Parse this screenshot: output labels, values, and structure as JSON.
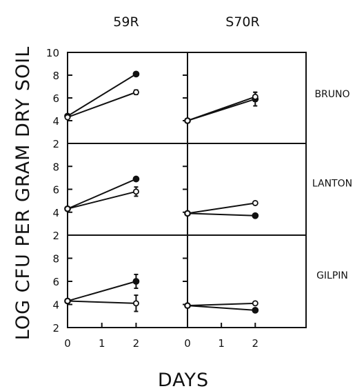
{
  "chart_data": {
    "type": "line",
    "ylabel": "LOG CFU PER GRAM DRY SOIL",
    "xlabel": "DAYS",
    "columns": [
      "59R",
      "S70R"
    ],
    "rows": [
      "BRUNO",
      "LANTON",
      "GILPIN"
    ],
    "ylim": [
      2,
      10
    ],
    "yticks": [
      2,
      4,
      6,
      8,
      10
    ],
    "xlim": [
      0,
      3.5
    ],
    "xticks": [
      0,
      1,
      2
    ],
    "x": [
      0,
      2
    ],
    "panels": [
      {
        "row": "BRUNO",
        "column": "59R",
        "series": [
          {
            "marker": "filled",
            "values": [
              4.4,
              8.1
            ]
          },
          {
            "marker": "open",
            "values": [
              4.3,
              6.5
            ],
            "error": [
              0,
              0.2
            ]
          }
        ]
      },
      {
        "row": "BRUNO",
        "column": "S70R",
        "series": [
          {
            "marker": "filled",
            "values": [
              4.0,
              5.9
            ],
            "error": [
              0,
              0.6
            ]
          },
          {
            "marker": "open",
            "values": [
              4.0,
              6.1
            ],
            "error": [
              0,
              0.4
            ]
          }
        ]
      },
      {
        "row": "LANTON",
        "column": "59R",
        "series": [
          {
            "marker": "filled",
            "values": [
              4.3,
              6.9
            ]
          },
          {
            "marker": "open",
            "values": [
              4.3,
              5.8
            ],
            "error": [
              0,
              0.4
            ]
          }
        ]
      },
      {
        "row": "LANTON",
        "column": "S70R",
        "series": [
          {
            "marker": "filled",
            "values": [
              3.9,
              3.7
            ]
          },
          {
            "marker": "open",
            "values": [
              3.9,
              4.8
            ]
          }
        ]
      },
      {
        "row": "GILPIN",
        "column": "59R",
        "series": [
          {
            "marker": "filled",
            "values": [
              4.3,
              6.0
            ],
            "error": [
              0,
              0.6
            ]
          },
          {
            "marker": "open",
            "values": [
              4.3,
              4.1
            ],
            "error": [
              0,
              0.7
            ]
          }
        ]
      },
      {
        "row": "GILPIN",
        "column": "S70R",
        "series": [
          {
            "marker": "filled",
            "values": [
              3.9,
              3.5
            ]
          },
          {
            "marker": "open",
            "values": [
              3.9,
              4.1
            ]
          }
        ]
      }
    ]
  }
}
